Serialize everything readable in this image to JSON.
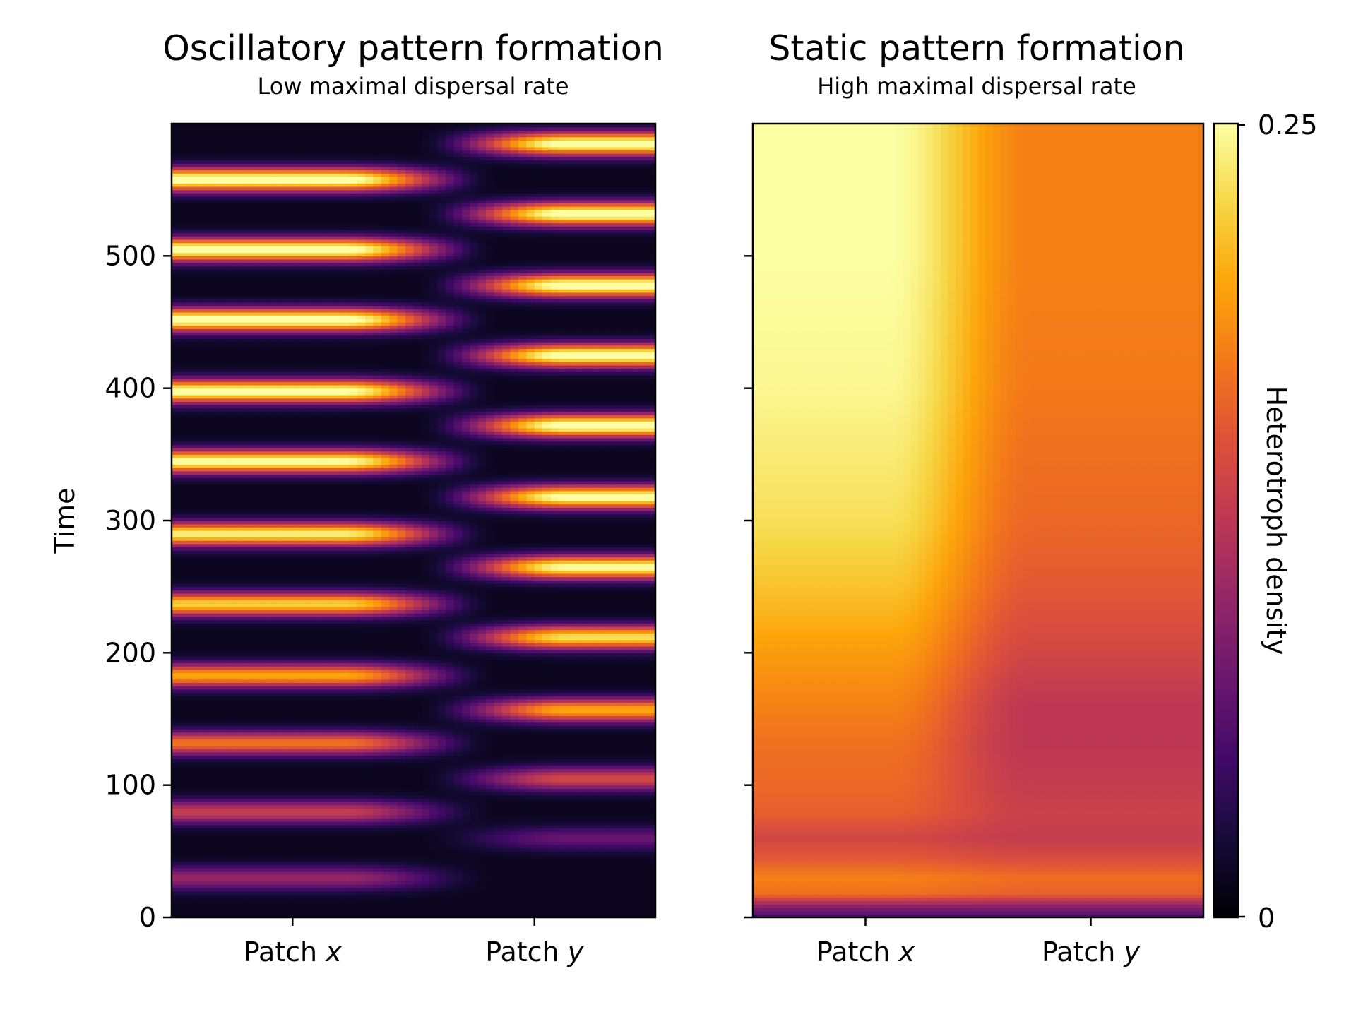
{
  "chart_data": [
    {
      "type": "heatmap",
      "title": "Oscillatory pattern formation",
      "subtitle": "Low maximal dispersal rate",
      "xlabel": "",
      "ylabel": "Time",
      "x_categories": [
        {
          "name": "Patch",
          "italic": "x"
        },
        {
          "name": "Patch",
          "italic": "y"
        }
      ],
      "ylim": [
        0,
        600
      ],
      "yticks": [
        0,
        100,
        200,
        300,
        400,
        500
      ],
      "colormap": "inferno",
      "peak_times_patch_x": [
        30,
        80,
        132,
        183,
        237,
        290,
        345,
        398,
        452,
        505,
        558
      ],
      "peak_times_patch_y": [
        60,
        105,
        157,
        212,
        265,
        318,
        372,
        425,
        478,
        532,
        585
      ],
      "peak_density_patch_x": [
        0.09,
        0.12,
        0.16,
        0.19,
        0.21,
        0.23,
        0.24,
        0.245,
        0.25,
        0.25,
        0.25
      ],
      "peak_density_patch_y": [
        0.06,
        0.13,
        0.19,
        0.22,
        0.24,
        0.245,
        0.25,
        0.25,
        0.25,
        0.25,
        0.25
      ]
    },
    {
      "type": "heatmap",
      "title": "Static pattern formation",
      "subtitle": "High maximal dispersal rate",
      "xlabel": "",
      "ylabel": "",
      "x_categories": [
        {
          "name": "Patch",
          "italic": "x"
        },
        {
          "name": "Patch",
          "italic": "y"
        }
      ],
      "ylim": [
        0,
        600
      ],
      "yticks": [
        0,
        100,
        200,
        300,
        400,
        500
      ],
      "colormap": "inferno",
      "profile_time": [
        0,
        8,
        18,
        30,
        45,
        60,
        80,
        100,
        130,
        160,
        200,
        250,
        300,
        400,
        500,
        600
      ],
      "density_patch_x": [
        0.05,
        0.09,
        0.17,
        0.18,
        0.155,
        0.14,
        0.16,
        0.165,
        0.17,
        0.18,
        0.195,
        0.215,
        0.23,
        0.245,
        0.25,
        0.25
      ],
      "density_patch_y": [
        0.05,
        0.09,
        0.16,
        0.17,
        0.145,
        0.13,
        0.135,
        0.13,
        0.125,
        0.125,
        0.14,
        0.155,
        0.165,
        0.175,
        0.18,
        0.18
      ]
    }
  ],
  "colorbar": {
    "label": "Heterotroph density",
    "min": 0,
    "max": 0.25,
    "tick_labels": [
      "0",
      "0.25"
    ]
  }
}
